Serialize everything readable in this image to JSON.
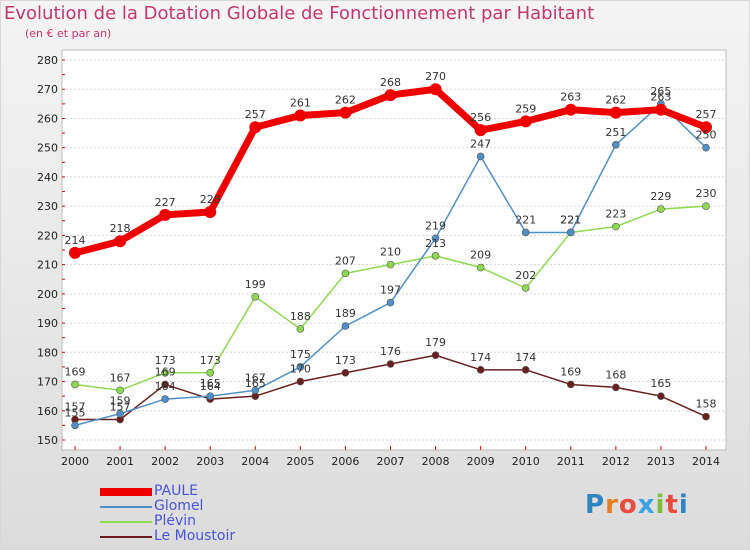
{
  "header": {
    "title": "Evolution de la Dotation Globale de Fonctionnement par Habitant",
    "subtitle": "(en € et par an)"
  },
  "logo": {
    "text": "Proxiti",
    "colors": [
      "#2e86c1",
      "#e67e22",
      "#e74c3c",
      "#3aa3e0",
      "#7dbf3a",
      "#e74c3c",
      "#2e86c1"
    ]
  },
  "chart_data": {
    "type": "line",
    "title": "Evolution de la Dotation Globale de Fonctionnement par Habitant",
    "subtitle": "(en € et par an)",
    "x": [
      "2000",
      "2001",
      "2002",
      "2003",
      "2004",
      "2005",
      "2006",
      "2007",
      "2008",
      "2009",
      "2010",
      "2011",
      "2012",
      "2013",
      "2014"
    ],
    "ylim": [
      150,
      280
    ],
    "yticks": [
      150,
      160,
      170,
      180,
      190,
      200,
      210,
      220,
      230,
      240,
      250,
      260,
      270,
      280
    ],
    "grid": "horizontal",
    "legend_position": "bottom-left",
    "series": [
      {
        "name": "PAULE",
        "color": "#ee0000",
        "emphasis": true,
        "values": [
          214,
          218,
          227,
          228,
          257,
          261,
          262,
          268,
          270,
          256,
          259,
          263,
          262,
          263,
          257
        ],
        "labels": [
          "214",
          "218",
          "227",
          "228",
          "257",
          "261",
          "262",
          "268",
          "270",
          "256",
          "259",
          "263",
          "262",
          "263",
          "257"
        ]
      },
      {
        "name": "Glomel",
        "color": "#4f90c8",
        "values": [
          155,
          159,
          164,
          165,
          167,
          175,
          189,
          197,
          219,
          247,
          221,
          221,
          251,
          265,
          250
        ],
        "labels": [
          "155",
          "159",
          "164",
          "165",
          "167",
          "175",
          "189",
          "197",
          "219",
          "247",
          "221",
          "221",
          "251",
          "265",
          "250"
        ]
      },
      {
        "name": "Plévin",
        "color": "#8ed94f",
        "values": [
          169,
          167,
          173,
          173,
          199,
          188,
          207,
          210,
          213,
          209,
          202,
          221,
          223,
          229,
          230
        ],
        "labels": [
          "169",
          "167",
          "173",
          "173",
          "199",
          "188",
          "207",
          "210",
          "213",
          "209",
          "202",
          "221",
          "223",
          "229",
          "230"
        ]
      },
      {
        "name": "Le Moustoir",
        "color": "#6b2020",
        "values": [
          157,
          157,
          169,
          164,
          165,
          170,
          173,
          176,
          179,
          174,
          174,
          169,
          168,
          165,
          158
        ],
        "labels": [
          "157",
          "157",
          "169",
          "164",
          "165",
          "170",
          "173",
          "176",
          "179",
          "174",
          "174",
          "169",
          "168",
          "165",
          "158"
        ]
      }
    ]
  }
}
